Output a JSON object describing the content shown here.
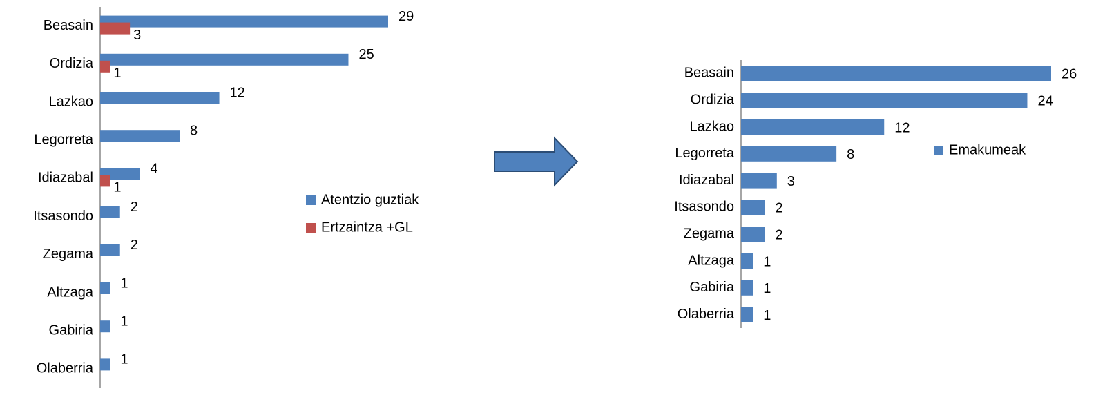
{
  "chart_data": [
    {
      "type": "bar",
      "categories": [
        "Beasain",
        "Ordizia",
        "Lazkao",
        "Legorreta",
        "Idiazabal",
        "Itsasondo",
        "Zegama",
        "Altzaga",
        "Gabiria",
        "Olaberria"
      ],
      "series": [
        {
          "name": "Atentzio guztiak",
          "color": "#4f81bd",
          "values": [
            29,
            25,
            12,
            8,
            4,
            2,
            2,
            1,
            1,
            1
          ]
        },
        {
          "name": "Ertzaintza +GL",
          "color": "#c0504d",
          "values": [
            3,
            1,
            null,
            null,
            1,
            null,
            null,
            null,
            null,
            null
          ]
        }
      ]
    },
    {
      "type": "bar",
      "categories": [
        "Beasain",
        "Ordizia",
        "Lazkao",
        "Legorreta",
        "Idiazabal",
        "Itsasondo",
        "Zegama",
        "Altzaga",
        "Gabiria",
        "Olaberria"
      ],
      "series": [
        {
          "name": "Emakumeak",
          "color": "#4f81bd",
          "values": [
            26,
            24,
            12,
            8,
            3,
            2,
            2,
            1,
            1,
            1
          ]
        }
      ]
    }
  ]
}
